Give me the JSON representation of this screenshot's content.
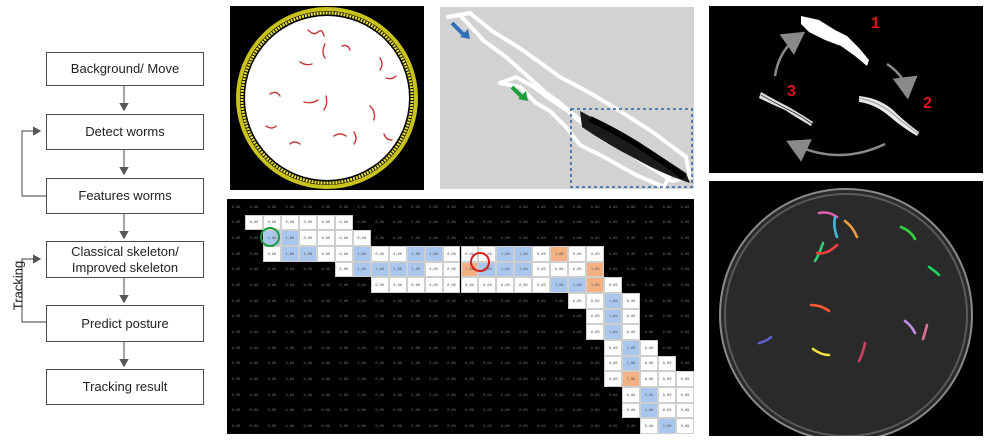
{
  "flowchart": {
    "steps": [
      {
        "id": "bg",
        "label": "Background/ Move"
      },
      {
        "id": "detect",
        "label": "Detect worms"
      },
      {
        "id": "features",
        "label": "Features worms"
      },
      {
        "id": "skeleton",
        "label": "Classical skeleton/ Improved skeleton"
      },
      {
        "id": "predict",
        "label": "Predict posture"
      },
      {
        "id": "result",
        "label": "Tracking result"
      }
    ],
    "loop_label": "Tracking"
  },
  "cycle_panel": {
    "numbers": [
      "1",
      "2",
      "3"
    ],
    "number_color": "#e3111b"
  },
  "grid_panel": {
    "cell_value_default": "0,00",
    "cell_value_skeleton": "1,00",
    "colors": {
      "skeleton": "#ffffff",
      "blue": "#a9c6ec",
      "orange": "#f4b183",
      "green_ring": "#1e9e3e",
      "red_ring": "#d62020"
    }
  },
  "colors": {
    "dish_rim": "#d9d21a",
    "worm_red": "#c23a3a",
    "arrow_blue": "#2f6fb8",
    "arrow_green": "#1f9d3a",
    "dotted_box": "#2f5f9f"
  }
}
